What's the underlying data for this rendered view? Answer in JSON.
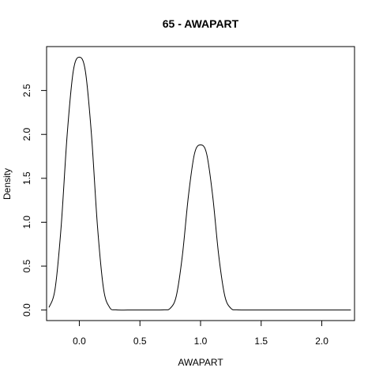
{
  "chart_data": {
    "type": "line",
    "title": "65 - AWAPART",
    "xlabel": "AWAPART",
    "ylabel": "Density",
    "xlim": [
      -0.27,
      2.27
    ],
    "ylim": [
      -0.12,
      3.0
    ],
    "grid": false,
    "x_ticks": [
      0.0,
      0.5,
      1.0,
      1.5,
      2.0
    ],
    "x_tick_labels": [
      "0.0",
      "0.5",
      "1.0",
      "1.5",
      "2.0"
    ],
    "y_ticks": [
      0.0,
      0.5,
      1.0,
      1.5,
      2.0,
      2.5
    ],
    "y_tick_labels": [
      "0.0",
      "0.5",
      "1.0",
      "1.5",
      "2.0",
      "2.5"
    ],
    "series": [
      {
        "x": [
          -0.25,
          -0.2,
          -0.15,
          -0.1,
          -0.05,
          0.0,
          0.05,
          0.1,
          0.15,
          0.2,
          0.25,
          0.3,
          0.4,
          0.5,
          0.6,
          0.7,
          0.75,
          0.8,
          0.85,
          0.9,
          0.95,
          1.0,
          1.05,
          1.1,
          1.15,
          1.2,
          1.25,
          1.3,
          1.4,
          1.6,
          1.8,
          2.0,
          2.24
        ],
        "y": [
          0.03,
          0.24,
          0.95,
          2.0,
          2.72,
          2.88,
          2.72,
          2.0,
          0.95,
          0.24,
          0.03,
          0.002,
          0.0,
          0.0,
          0.0,
          0.002,
          0.02,
          0.16,
          0.62,
          1.3,
          1.78,
          1.88,
          1.78,
          1.3,
          0.62,
          0.16,
          0.02,
          0.002,
          0.0,
          0.0,
          0.0,
          0.0,
          0.0
        ]
      }
    ]
  }
}
